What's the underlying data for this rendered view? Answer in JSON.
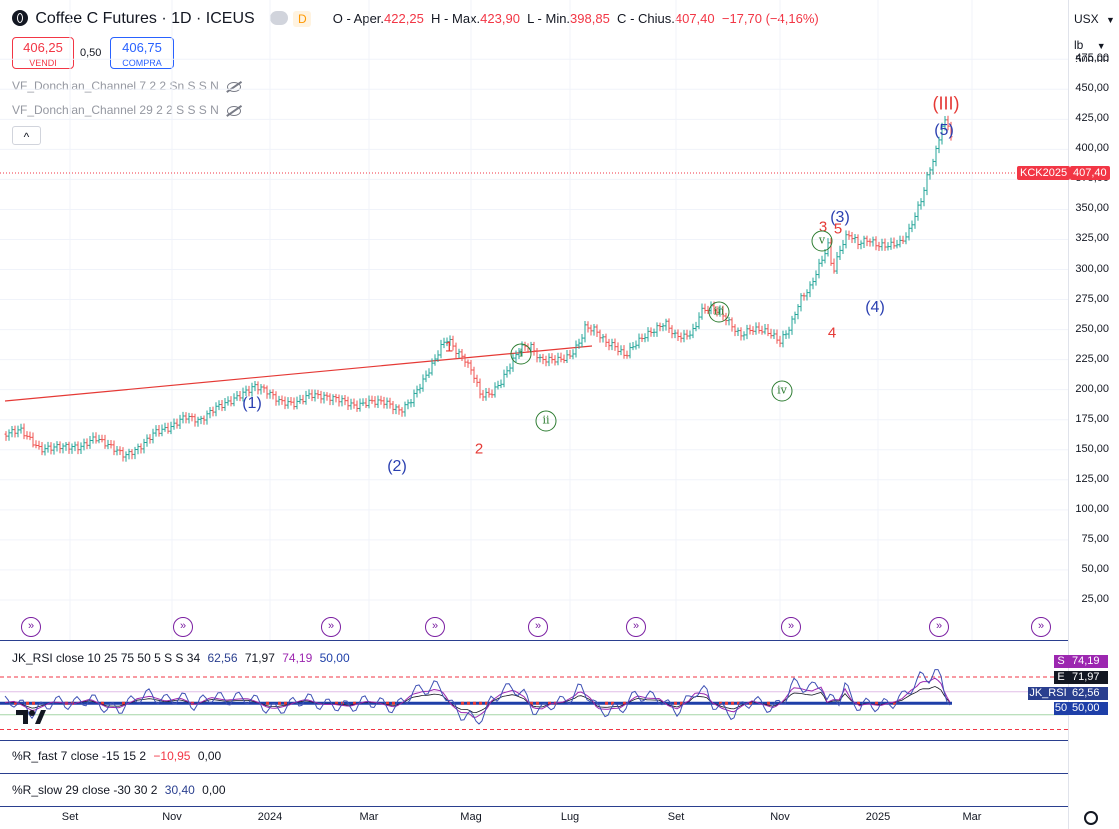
{
  "header": {
    "title": "Coffee C Futures · 1D · ICEUS",
    "delay_badge": "D",
    "ohlc": {
      "o_label": "O",
      "o_text": "- Aper.",
      "o_val": "422,25",
      "h_label": "H",
      "h_text": "- Max.",
      "h_val": "423,90",
      "l_label": "L",
      "l_text": "- Min.",
      "l_val": "398,85",
      "c_label": "C",
      "c_text": "- Chius.",
      "c_val": "407,40",
      "change": "−17,70 (−4,16%)"
    }
  },
  "trade": {
    "sell_price": "406,25",
    "sell_label": "VENDI",
    "spread": "0,50",
    "buy_price": "406,75",
    "buy_label": "COMPRA"
  },
  "indicators": {
    "donchian1": "VF_Donchian_Channel 7 2 2 Sn S S N",
    "donchian2": "VF_Donchian_Channel 29 2 2 S S S N",
    "collapse_icon": "^"
  },
  "axis": {
    "currency": "USX",
    "unit": "lb",
    "price_labels": [
      "475,00",
      "450,00",
      "425,00",
      "400,00",
      "375,00",
      "350,00",
      "325,00",
      "300,00",
      "275,00",
      "250,00",
      "225,00",
      "200,00",
      "175,00",
      "150,00",
      "125,00",
      "100,00",
      "75,00",
      "50,00",
      "25,00"
    ],
    "partial_top": "500,00",
    "time_labels": [
      "Set",
      "Nov",
      "2024",
      "Mar",
      "Mag",
      "Lug",
      "Set",
      "Nov",
      "2025",
      "Mar"
    ]
  },
  "last_price": {
    "symbol": "KCK2025",
    "value": "407,40",
    "color": "#f23645"
  },
  "waves": {
    "blue": [
      "(1)",
      "(2)",
      "(3)",
      "(4)",
      "(5)"
    ],
    "red_major": "(III)",
    "red": [
      "1",
      "2",
      "3",
      "4",
      "5"
    ],
    "green": [
      "i",
      "ii",
      "iii",
      "iv",
      "v"
    ]
  },
  "rsi": {
    "legend": "JK_RSI close 10 25 75 50 5 S S 34",
    "v1": "62,56",
    "v2": "71,97",
    "v3": "74,19",
    "v4": "50,00",
    "tags": [
      {
        "letter": "S",
        "value": "74,19",
        "color": "#9c27b0"
      },
      {
        "letter": "E",
        "value": "71,97",
        "color": "#131722"
      },
      {
        "letter": "JK_RSI",
        "value": "62,56",
        "color": "#2a3f8f"
      },
      {
        "letter": "50",
        "value": "50,00",
        "color": "#1e3fa8"
      }
    ]
  },
  "wr_fast": {
    "legend": "%R_fast 7 close -15 15 2",
    "v1": "−10,95",
    "v2": "0,00"
  },
  "wr_slow": {
    "legend": "%R_slow 29 close -30 30 2",
    "v1": "30,40",
    "v2": "0,00"
  },
  "goto_icon": "double-chevron-right-icon",
  "colors": {
    "up": "#26a69a",
    "down": "#ef5350",
    "blue": "#2a3fb0",
    "red": "#e53935",
    "green": "#2e7d32",
    "purple": "#9c27b0"
  }
}
